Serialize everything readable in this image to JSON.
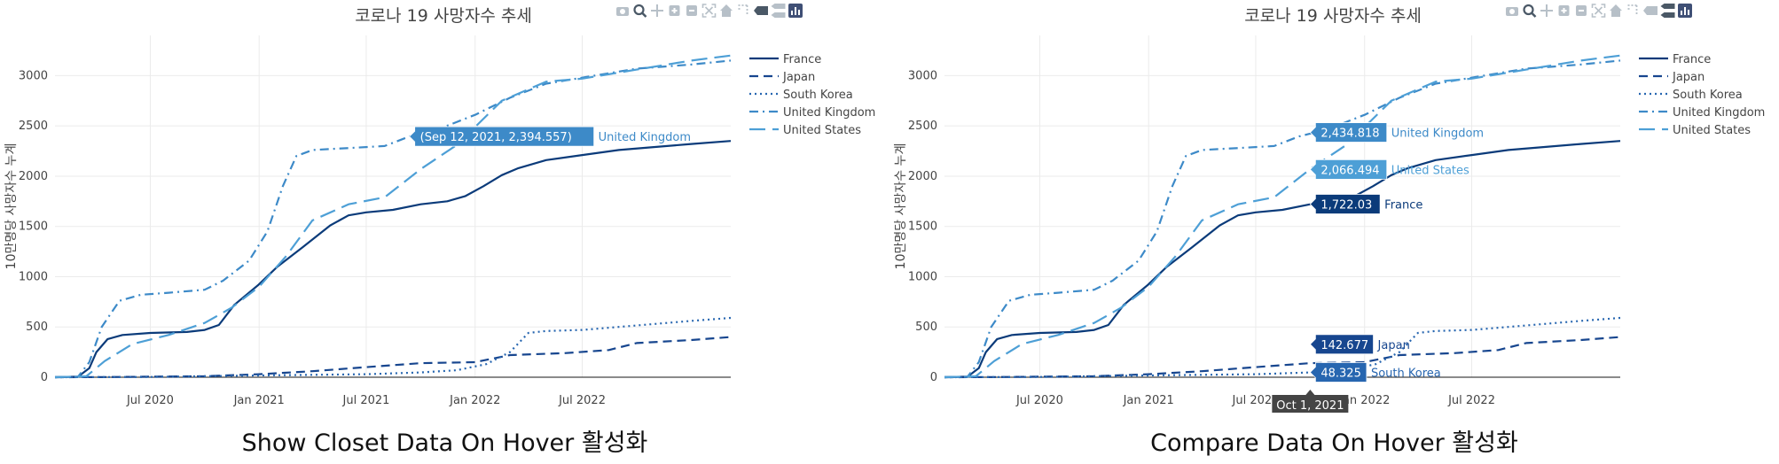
{
  "chart_title": "코로나 19 사망자수 추세",
  "colors": {
    "France": "#0b3b7a",
    "Japan": "#17468f",
    "South Korea": "#2766b0",
    "United Kingdom": "#3d8ac8",
    "United States": "#4d9fd6",
    "modebar_icon": "#b7c0c8",
    "modebar_active": "#4a5866",
    "axis_text": "#444444",
    "grid": "#ebebeb"
  },
  "modebar_icons": [
    "camera-icon",
    "zoom-icon",
    "pan-icon",
    "zoom-in-icon",
    "zoom-out-icon",
    "autoscale-icon",
    "reset-axes-icon",
    "spike-lines-icon",
    "hover-closest-icon",
    "hover-compare-icon",
    "plotly-logo-icon"
  ],
  "chart_data": [
    {
      "type": "line",
      "title": "코로나 19 사망자수 추세",
      "ylabel": "10만명당 사망자수 누계",
      "xlabel": "",
      "x_ticks": [
        "Jul 2020",
        "Jan 2021",
        "Jul 2021",
        "Jan 2022",
        "Jul 2022"
      ],
      "y_ticks": [
        "0",
        "500",
        "1000",
        "1500",
        "2000",
        "2500",
        "3000"
      ],
      "ylim": [
        0,
        3400
      ],
      "xlim": [
        "2020-01-22",
        "2023-03-09"
      ],
      "grid": true,
      "legend": "top-right",
      "hover_mode": "closest",
      "series": [
        {
          "name": "France",
          "dash": "solid",
          "points": [
            [
              "2020-01-22",
              0
            ],
            [
              "2020-03-01",
              5
            ],
            [
              "2020-03-20",
              90
            ],
            [
              "2020-04-01",
              250
            ],
            [
              "2020-04-20",
              380
            ],
            [
              "2020-05-15",
              420
            ],
            [
              "2020-07-01",
              440
            ],
            [
              "2020-09-01",
              450
            ],
            [
              "2020-10-01",
              470
            ],
            [
              "2020-10-25",
              520
            ],
            [
              "2020-11-20",
              720
            ],
            [
              "2020-12-31",
              920
            ],
            [
              "2021-02-01",
              1100
            ],
            [
              "2021-03-15",
              1290
            ],
            [
              "2021-05-01",
              1510
            ],
            [
              "2021-06-01",
              1610
            ],
            [
              "2021-07-01",
              1640
            ],
            [
              "2021-08-15",
              1665
            ],
            [
              "2021-10-01",
              1720
            ],
            [
              "2021-11-15",
              1750
            ],
            [
              "2021-12-15",
              1800
            ],
            [
              "2022-01-15",
              1900
            ],
            [
              "2022-02-15",
              2010
            ],
            [
              "2022-03-15",
              2080
            ],
            [
              "2022-05-01",
              2160
            ],
            [
              "2022-07-01",
              2210
            ],
            [
              "2022-09-01",
              2260
            ],
            [
              "2022-11-01",
              2290
            ],
            [
              "2023-01-01",
              2320
            ],
            [
              "2023-03-09",
              2350
            ]
          ]
        },
        {
          "name": "Japan",
          "dash": "dash",
          "points": [
            [
              "2020-01-22",
              0
            ],
            [
              "2020-04-01",
              1
            ],
            [
              "2020-07-01",
              5
            ],
            [
              "2020-10-01",
              10
            ],
            [
              "2021-01-01",
              30
            ],
            [
              "2021-04-01",
              60
            ],
            [
              "2021-07-01",
              100
            ],
            [
              "2021-10-01",
              140
            ],
            [
              "2022-01-01",
              150
            ],
            [
              "2022-03-01",
              220
            ],
            [
              "2022-06-01",
              240
            ],
            [
              "2022-08-15",
              270
            ],
            [
              "2022-10-01",
              340
            ],
            [
              "2023-01-01",
              370
            ],
            [
              "2023-03-09",
              400
            ]
          ]
        },
        {
          "name": "South Korea",
          "dash": "dot",
          "points": [
            [
              "2020-01-22",
              0
            ],
            [
              "2020-07-01",
              3
            ],
            [
              "2021-01-01",
              18
            ],
            [
              "2021-07-01",
              30
            ],
            [
              "2021-10-01",
              48
            ],
            [
              "2021-12-01",
              70
            ],
            [
              "2022-01-20",
              130
            ],
            [
              "2022-03-01",
              250
            ],
            [
              "2022-04-01",
              440
            ],
            [
              "2022-05-01",
              460
            ],
            [
              "2022-07-01",
              470
            ],
            [
              "2022-09-01",
              500
            ],
            [
              "2022-11-01",
              530
            ],
            [
              "2023-01-01",
              560
            ],
            [
              "2023-03-09",
              590
            ]
          ]
        },
        {
          "name": "United Kingdom",
          "dash": "dashdot",
          "points": [
            [
              "2020-01-22",
              0
            ],
            [
              "2020-03-01",
              5
            ],
            [
              "2020-03-20",
              150
            ],
            [
              "2020-04-10",
              500
            ],
            [
              "2020-05-10",
              760
            ],
            [
              "2020-06-15",
              820
            ],
            [
              "2020-08-01",
              840
            ],
            [
              "2020-10-01",
              870
            ],
            [
              "2020-11-01",
              960
            ],
            [
              "2020-12-15",
              1160
            ],
            [
              "2021-01-15",
              1450
            ],
            [
              "2021-02-10",
              1900
            ],
            [
              "2021-03-05",
              2200
            ],
            [
              "2021-04-01",
              2260
            ],
            [
              "2021-06-01",
              2280
            ],
            [
              "2021-08-01",
              2300
            ],
            [
              "2021-09-12",
              2395
            ],
            [
              "2021-11-01",
              2470
            ],
            [
              "2022-01-01",
              2610
            ],
            [
              "2022-03-01",
              2780
            ],
            [
              "2022-05-01",
              2920
            ],
            [
              "2022-07-01",
              2980
            ],
            [
              "2022-10-01",
              3070
            ],
            [
              "2023-01-01",
              3110
            ],
            [
              "2023-03-09",
              3150
            ]
          ]
        },
        {
          "name": "United States",
          "dash": "longdash",
          "points": [
            [
              "2020-01-22",
              0
            ],
            [
              "2020-03-15",
              10
            ],
            [
              "2020-04-15",
              160
            ],
            [
              "2020-06-01",
              330
            ],
            [
              "2020-08-01",
              420
            ],
            [
              "2020-10-01",
              540
            ],
            [
              "2020-11-15",
              690
            ],
            [
              "2021-01-01",
              900
            ],
            [
              "2021-02-15",
              1200
            ],
            [
              "2021-04-01",
              1560
            ],
            [
              "2021-06-01",
              1720
            ],
            [
              "2021-08-01",
              1790
            ],
            [
              "2021-10-01",
              2070
            ],
            [
              "2021-12-01",
              2310
            ],
            [
              "2022-02-15",
              2750
            ],
            [
              "2022-05-01",
              2940
            ],
            [
              "2022-07-01",
              2970
            ],
            [
              "2022-10-01",
              3060
            ],
            [
              "2023-01-01",
              3150
            ],
            [
              "2023-03-09",
              3200
            ]
          ]
        }
      ],
      "annotations": [
        {
          "label": "(Sep 12, 2021, 2,394.557)",
          "name": "United Kingdom",
          "x": "2021-09-12",
          "y": 2394.557,
          "series": "United Kingdom"
        }
      ],
      "caption": "Show Closet Data On Hover 활성화"
    },
    {
      "type": "line",
      "title": "코로나 19 사망자수 추세",
      "ylabel": "10만명당 사망자수 누계",
      "xlabel": "",
      "x_ticks": [
        "Jul 2020",
        "Jan 2021",
        "Jul 2021",
        "Jan 2022",
        "Jul 2022"
      ],
      "y_ticks": [
        "0",
        "500",
        "1000",
        "1500",
        "2000",
        "2500",
        "3000"
      ],
      "ylim": [
        0,
        3400
      ],
      "xlim": [
        "2020-01-22",
        "2023-03-09"
      ],
      "grid": true,
      "legend": "top-right",
      "hover_mode": "compare",
      "hover_x_label": "Oct 1, 2021",
      "hover_x": "2021-10-01",
      "series_ref": 0,
      "annotations": [
        {
          "label": "2,434.818",
          "name": "United Kingdom",
          "x": "2021-10-01",
          "y": 2434.818,
          "series": "United Kingdom"
        },
        {
          "label": "2,066.494",
          "name": "United States",
          "x": "2021-10-01",
          "y": 2066.494,
          "series": "United States"
        },
        {
          "label": "1,722.03",
          "name": "France",
          "x": "2021-10-01",
          "y": 1722.03,
          "series": "France"
        },
        {
          "label": "142.677",
          "name": "Japan",
          "x": "2021-10-01",
          "y": 142.677,
          "series": "Japan"
        },
        {
          "label": "48.325",
          "name": "South Korea",
          "x": "2021-10-01",
          "y": 48.325,
          "series": "South Korea"
        }
      ],
      "caption": "Compare Data On Hover 활성화"
    }
  ]
}
